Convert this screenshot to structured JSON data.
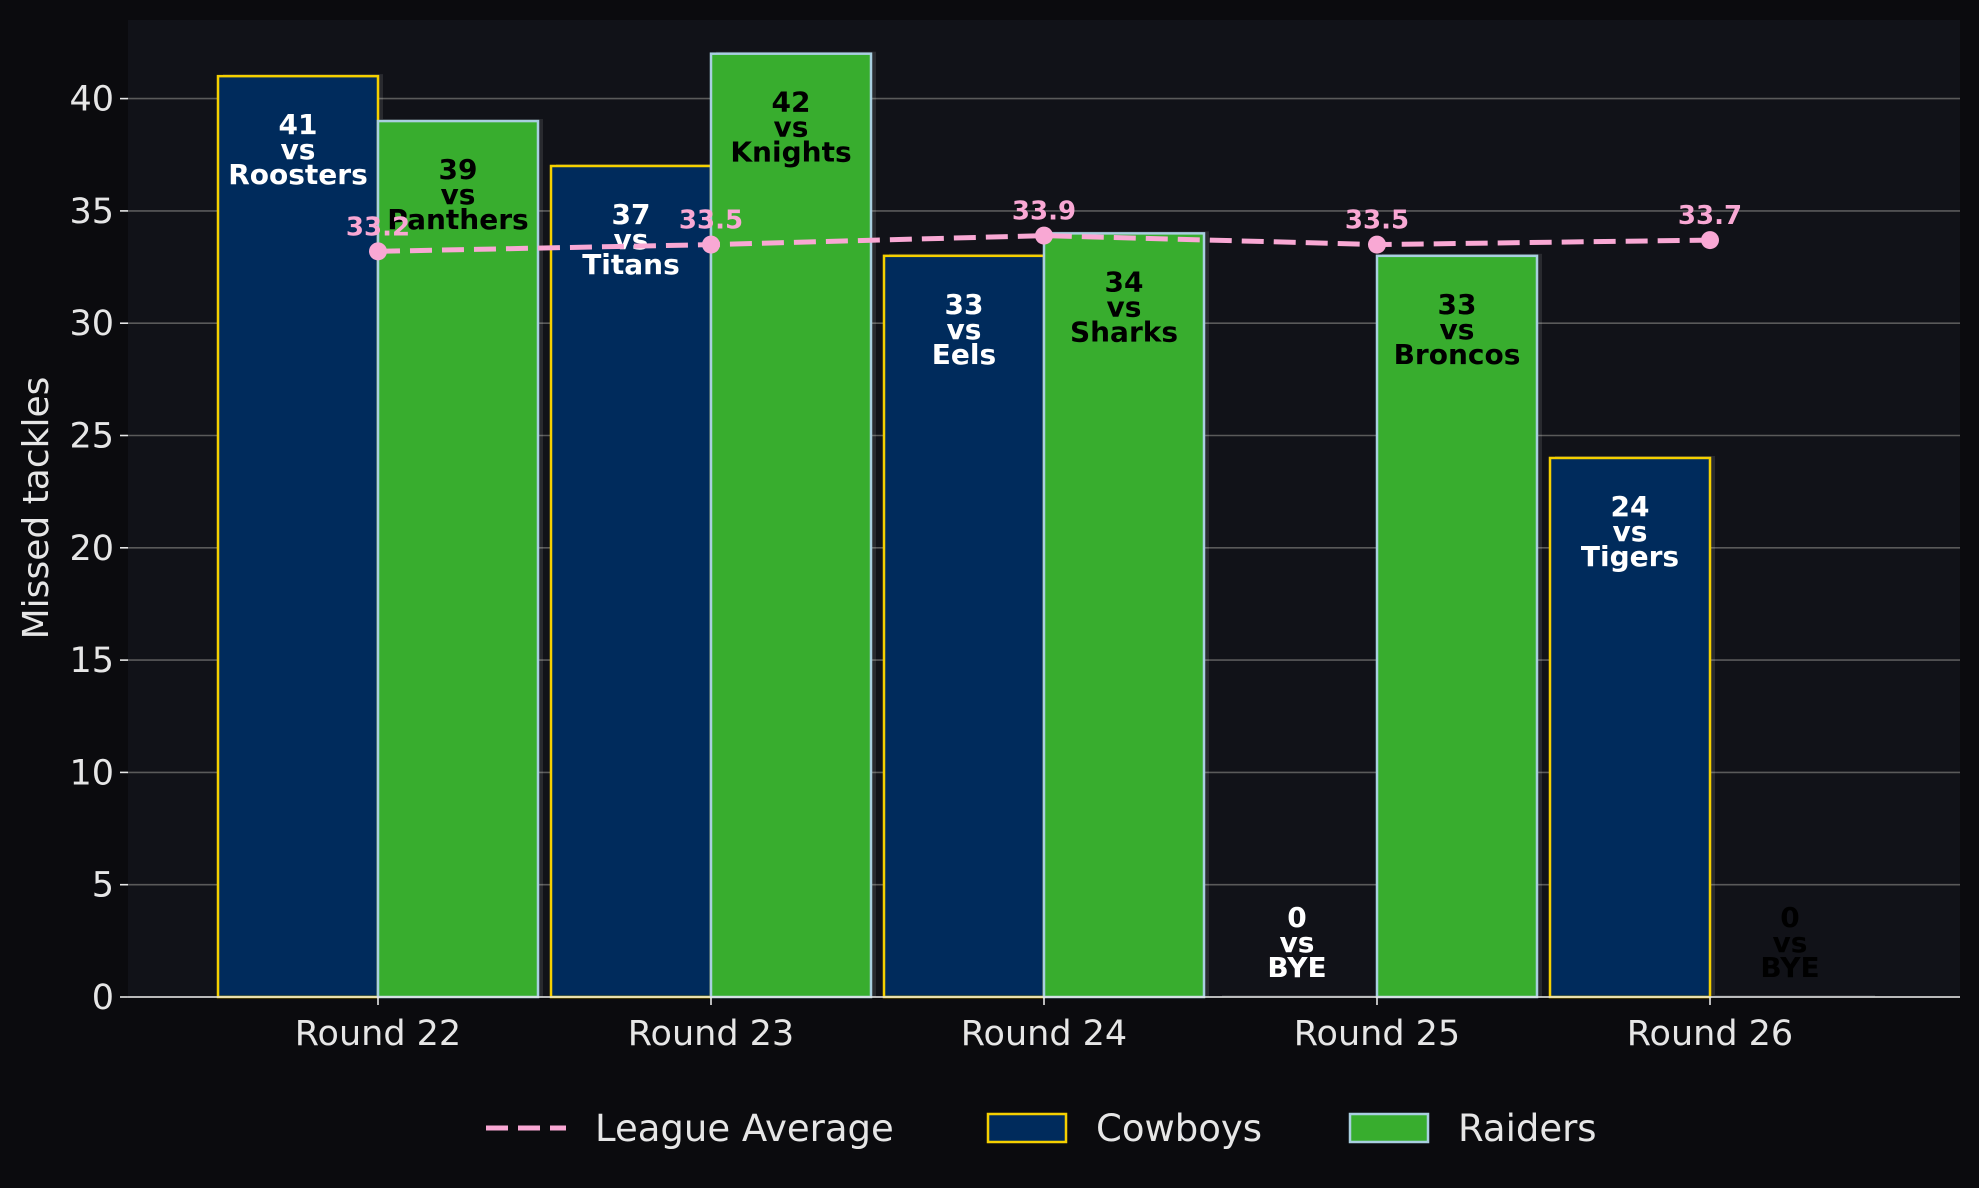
{
  "chart_data": {
    "type": "bar",
    "title": "",
    "xlabel": "",
    "ylabel": "Missed tackles",
    "ylim": [
      0,
      43.5
    ],
    "yticks": [
      0,
      5,
      10,
      15,
      20,
      25,
      30,
      35,
      40
    ],
    "grid": "y",
    "legend_position": "bottom-center",
    "categories": [
      "Round 22",
      "Round 23",
      "Round 24",
      "Round 25",
      "Round 26"
    ],
    "series": [
      {
        "name": "Cowboys",
        "color": "#002b5c",
        "edge_color": "#f5d000",
        "label_color": "#ffffff",
        "values": [
          41,
          37,
          33,
          0,
          24
        ],
        "opponents": [
          "Roosters",
          "Titans",
          "Eels",
          "BYE",
          "Tigers"
        ]
      },
      {
        "name": "Raiders",
        "color": "#38ad2e",
        "edge_color": "#a9cfe0",
        "label_color": "#000000",
        "values": [
          39,
          42,
          34,
          33,
          0
        ],
        "opponents": [
          "Panthers",
          "Knights",
          "Sharks",
          "Broncos",
          "BYE"
        ]
      }
    ],
    "vs_word": "vs",
    "league_average": {
      "name": "League Average",
      "color": "#f9a8d4",
      "style": "dashed",
      "values": [
        33.2,
        33.5,
        33.9,
        33.5,
        33.7
      ],
      "labels": [
        "33.2",
        "33.5",
        "33.9",
        "33.5",
        "33.7"
      ]
    },
    "legend": [
      "League Average",
      "Cowboys",
      "Raiders"
    ],
    "background": "#111218",
    "figure_background": "#0b0b0e",
    "grid_color": "#5a5a5a",
    "text_color": "#e6e6e6"
  }
}
